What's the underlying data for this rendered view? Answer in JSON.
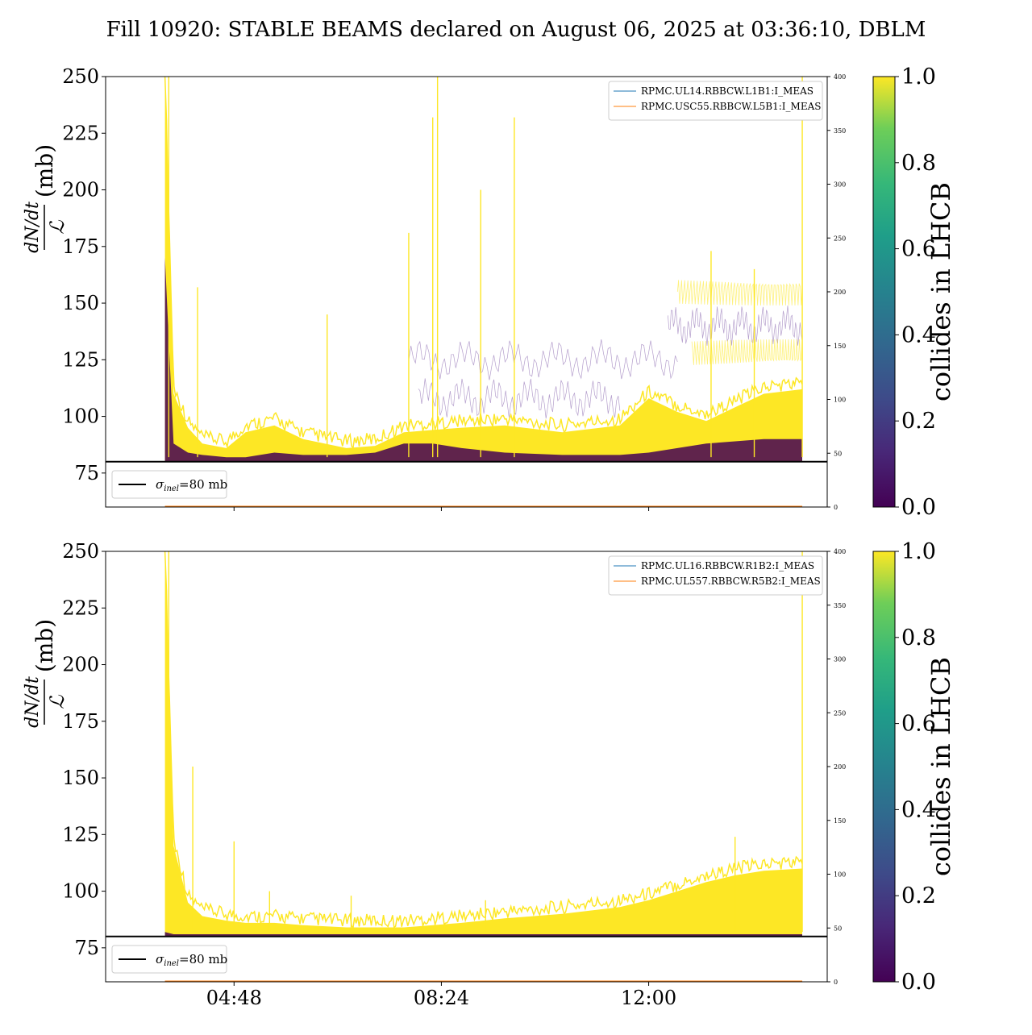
{
  "title": "Fill 10920: STABLE BEAMS declared on August 06, 2025 at 03:36:10, DBLM",
  "colors": {
    "yellow": "#fde725",
    "dark": "#440154",
    "purple": "#6a3d9a",
    "series_blue": "#1f77b4",
    "series_orange": "#ff7f0e",
    "threshold": "#000000"
  },
  "colorbar": {
    "label": "collides in LHCB",
    "colormap": "viridis",
    "ticks": [
      "0.0",
      "0.2",
      "0.4",
      "0.6",
      "0.8",
      "1.0"
    ]
  },
  "chart_data": [
    {
      "type": "line",
      "panel": "top",
      "ylabel_numerator": "dN/dt",
      "ylabel_denominator": "ℒ",
      "ylabel_unit": "(mb)",
      "ylim": [
        60,
        250
      ],
      "yticks": [
        "75",
        "100",
        "125",
        "150",
        "175",
        "200",
        "225",
        "250"
      ],
      "xticks": [
        "04:48",
        "08:24",
        "12:00"
      ],
      "xrange_hours": [
        2.57,
        15.1
      ],
      "right_ylim": [
        0,
        400
      ],
      "right_yticks": [
        "0",
        "50",
        "100",
        "150",
        "200",
        "250",
        "300",
        "350",
        "400"
      ],
      "threshold": {
        "value": 80,
        "label": "σinel=80 mb",
        "symbol": "σ",
        "sub": "inel",
        "rest": "=80 mb"
      },
      "legend": [
        {
          "name": "RPMC.UL14.RBBCW.L1B1:I_MEAS",
          "color": "#1f77b4"
        },
        {
          "name": "RPMC.USC55.RBBCW.L5B1:I_MEAS",
          "color": "#ff7f0e"
        }
      ],
      "envelope": {
        "time": [
          "03:36",
          "03:45",
          "04:00",
          "04:15",
          "04:40",
          "05:00",
          "05:30",
          "06:00",
          "06:45",
          "07:15",
          "07:45",
          "08:15",
          "08:45",
          "09:30",
          "10:30",
          "11:30",
          "12:00",
          "12:30",
          "13:00",
          "13:30",
          "14:00",
          "14:40"
        ],
        "upper": [
          250,
          110,
          95,
          88,
          86,
          93,
          96,
          90,
          86,
          87,
          93,
          94,
          95,
          96,
          93,
          96,
          108,
          102,
          98,
          104,
          110,
          112
        ],
        "lower": [
          80,
          80,
          80,
          80,
          80,
          80,
          80,
          80,
          80,
          80,
          80,
          80,
          80,
          80,
          80,
          80,
          80,
          80,
          80,
          80,
          80,
          80
        ],
        "dark_band": [
          170,
          88,
          84,
          83,
          82,
          82,
          84,
          83,
          83,
          84,
          88,
          88,
          86,
          84,
          83,
          83,
          84,
          86,
          88,
          89,
          90,
          90
        ]
      },
      "spikes": [
        {
          "time": "03:40",
          "value": 250
        },
        {
          "time": "04:10",
          "value": 157
        },
        {
          "time": "06:25",
          "value": 145
        },
        {
          "time": "07:50",
          "value": 181
        },
        {
          "time": "08:15",
          "value": 232
        },
        {
          "time": "08:20",
          "value": 250
        },
        {
          "time": "09:05",
          "value": 200
        },
        {
          "time": "09:40",
          "value": 232
        },
        {
          "time": "13:05",
          "value": 173
        },
        {
          "time": "13:50",
          "value": 165
        },
        {
          "time": "14:40",
          "value": 250
        }
      ],
      "purple_traces": [
        {
          "start": "07:50",
          "end": "12:30",
          "level": 125
        },
        {
          "start": "08:00",
          "end": "11:30",
          "level": 108
        },
        {
          "start": "12:20",
          "end": "14:40",
          "level": 140
        }
      ],
      "yellow_traces": [
        {
          "start": "12:30",
          "end": "14:40",
          "level": 155
        },
        {
          "start": "12:45",
          "end": "14:40",
          "level": 128
        }
      ]
    },
    {
      "type": "line",
      "panel": "bottom",
      "ylabel_numerator": "dN/dt",
      "ylabel_denominator": "ℒ",
      "ylabel_unit": "(mb)",
      "ylim": [
        60,
        250
      ],
      "yticks": [
        "75",
        "100",
        "125",
        "150",
        "175",
        "200",
        "225",
        "250"
      ],
      "xticks": [
        "04:48",
        "08:24",
        "12:00"
      ],
      "xrange_hours": [
        2.57,
        15.1
      ],
      "right_ylim": [
        0,
        400
      ],
      "right_yticks": [
        "0",
        "50",
        "100",
        "150",
        "200",
        "250",
        "300",
        "350",
        "400"
      ],
      "threshold": {
        "value": 80,
        "label": "σinel=80 mb",
        "symbol": "σ",
        "sub": "inel",
        "rest": "=80 mb"
      },
      "legend": [
        {
          "name": "RPMC.UL16.RBBCW.R1B2:I_MEAS",
          "color": "#1f77b4"
        },
        {
          "name": "RPMC.UL557.RBBCW.R5B2:I_MEAS",
          "color": "#ff7f0e"
        }
      ],
      "envelope": {
        "time": [
          "03:36",
          "03:45",
          "04:00",
          "04:15",
          "04:40",
          "05:00",
          "05:30",
          "06:00",
          "06:45",
          "07:15",
          "07:45",
          "08:15",
          "08:45",
          "09:30",
          "10:30",
          "11:30",
          "12:00",
          "12:30",
          "13:00",
          "13:30",
          "14:00",
          "14:40"
        ],
        "upper": [
          250,
          120,
          95,
          89,
          87,
          86,
          86,
          85,
          84,
          84,
          84,
          85,
          86,
          88,
          90,
          93,
          96,
          100,
          104,
          107,
          109,
          110
        ],
        "lower": [
          80,
          80,
          80,
          80,
          80,
          80,
          80,
          80,
          80,
          80,
          80,
          80,
          80,
          80,
          80,
          80,
          80,
          80,
          80,
          80,
          80,
          80
        ],
        "dark_band": [
          82,
          81,
          81,
          81,
          81,
          81,
          81,
          81,
          81,
          81,
          81,
          81,
          81,
          81,
          81,
          81,
          81,
          81,
          81,
          81,
          81,
          81
        ]
      },
      "spikes": [
        {
          "time": "03:40",
          "value": 250
        },
        {
          "time": "04:05",
          "value": 155
        },
        {
          "time": "04:48",
          "value": 122
        },
        {
          "time": "05:25",
          "value": 100
        },
        {
          "time": "06:50",
          "value": 98
        },
        {
          "time": "09:10",
          "value": 96
        },
        {
          "time": "13:30",
          "value": 124
        },
        {
          "time": "14:40",
          "value": 250
        }
      ],
      "purple_traces": [],
      "yellow_traces": []
    }
  ]
}
